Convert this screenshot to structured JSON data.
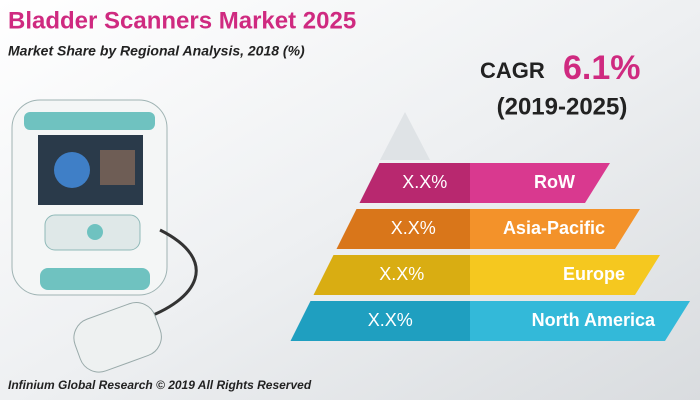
{
  "header": {
    "title": "Bladder Scanners Market 2025",
    "subtitle": "Market Share by Regional Analysis, 2018 (%)"
  },
  "cagr": {
    "label": "CAGR",
    "value": "6.1%",
    "period": "(2019-2025)"
  },
  "pyramid": {
    "tiers": [
      {
        "share": "X.X%",
        "region": "RoW"
      },
      {
        "share": "X.X%",
        "region": "Asia-Pacific"
      },
      {
        "share": "X.X%",
        "region": "Europe"
      },
      {
        "share": "X.X%",
        "region": "North America"
      }
    ]
  },
  "footer": "Infinium Global Research © 2019 All Rights Reserved"
}
